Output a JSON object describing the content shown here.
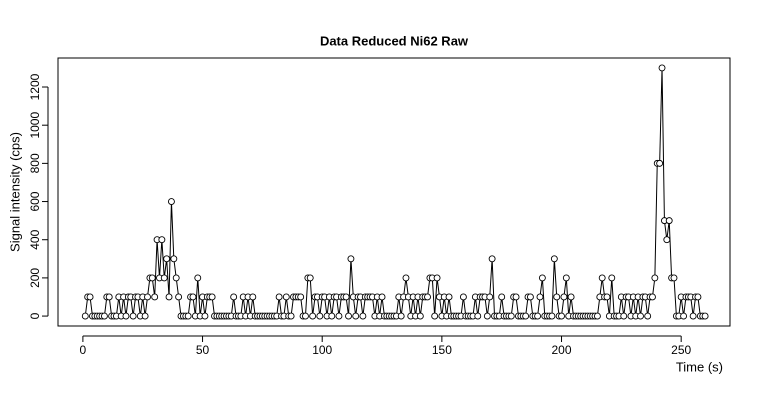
{
  "chart_data": {
    "type": "line",
    "title": "Data Reduced Ni62 Raw",
    "x_label": "Time (s)",
    "y_label": "Signal intensity (cps)",
    "x": [
      1,
      2,
      3,
      4,
      5,
      6,
      7,
      8,
      9,
      10,
      11,
      12,
      13,
      14,
      15,
      16,
      17,
      18,
      19,
      20,
      21,
      22,
      23,
      24,
      25,
      26,
      27,
      28,
      29,
      30,
      31,
      32,
      33,
      34,
      35,
      36,
      37,
      38,
      39,
      40,
      41,
      42,
      43,
      44,
      45,
      46,
      47,
      48,
      49,
      50,
      51,
      52,
      53,
      54,
      55,
      56,
      57,
      58,
      59,
      60,
      61,
      62,
      63,
      64,
      65,
      66,
      67,
      68,
      69,
      70,
      71,
      72,
      73,
      74,
      75,
      76,
      77,
      78,
      79,
      80,
      81,
      82,
      83,
      84,
      85,
      86,
      87,
      88,
      89,
      90,
      91,
      92,
      93,
      94,
      95,
      96,
      97,
      98,
      99,
      100,
      101,
      102,
      103,
      104,
      105,
      106,
      107,
      108,
      109,
      110,
      111,
      112,
      113,
      114,
      115,
      116,
      117,
      118,
      119,
      120,
      121,
      122,
      123,
      124,
      125,
      126,
      127,
      128,
      129,
      130,
      131,
      132,
      133,
      134,
      135,
      136,
      137,
      138,
      139,
      140,
      141,
      142,
      143,
      144,
      145,
      146,
      147,
      148,
      149,
      150,
      151,
      152,
      153,
      154,
      155,
      156,
      157,
      158,
      159,
      160,
      161,
      162,
      163,
      164,
      165,
      166,
      167,
      168,
      169,
      170,
      171,
      172,
      173,
      174,
      175,
      176,
      177,
      178,
      179,
      180,
      181,
      182,
      183,
      184,
      185,
      186,
      187,
      188,
      189,
      190,
      191,
      192,
      193,
      194,
      195,
      196,
      197,
      198,
      199,
      200,
      201,
      202,
      203,
      204,
      205,
      206,
      207,
      208,
      209,
      210,
      211,
      212,
      213,
      214,
      215,
      216,
      217,
      218,
      219,
      220,
      221,
      222,
      223,
      224,
      225,
      226,
      227,
      228,
      229,
      230,
      231,
      232,
      233,
      234,
      235,
      236,
      237,
      238,
      239,
      240,
      241,
      242,
      243,
      244,
      245,
      246,
      247,
      248,
      249,
      250,
      251,
      252,
      253,
      254,
      255,
      256,
      257,
      258,
      259,
      260
    ],
    "values": [
      0,
      100,
      100,
      0,
      0,
      0,
      0,
      0,
      0,
      100,
      100,
      0,
      0,
      0,
      100,
      0,
      100,
      0,
      100,
      100,
      0,
      100,
      100,
      0,
      100,
      0,
      100,
      200,
      200,
      100,
      400,
      200,
      400,
      200,
      300,
      100,
      600,
      300,
      200,
      100,
      0,
      0,
      0,
      0,
      100,
      100,
      0,
      200,
      0,
      100,
      0,
      100,
      100,
      100,
      0,
      0,
      0,
      0,
      0,
      0,
      0,
      0,
      100,
      0,
      0,
      0,
      100,
      0,
      100,
      0,
      100,
      0,
      0,
      0,
      0,
      0,
      0,
      0,
      0,
      0,
      0,
      100,
      0,
      0,
      100,
      0,
      0,
      100,
      100,
      100,
      100,
      0,
      0,
      200,
      200,
      0,
      100,
      100,
      0,
      100,
      100,
      0,
      100,
      0,
      100,
      100,
      0,
      100,
      100,
      100,
      0,
      300,
      100,
      0,
      100,
      100,
      0,
      100,
      100,
      100,
      100,
      0,
      100,
      0,
      100,
      0,
      0,
      0,
      0,
      0,
      0,
      100,
      0,
      100,
      200,
      100,
      0,
      100,
      0,
      100,
      0,
      100,
      100,
      100,
      200,
      200,
      0,
      200,
      100,
      0,
      100,
      0,
      100,
      0,
      0,
      0,
      0,
      0,
      100,
      0,
      0,
      0,
      0,
      100,
      0,
      100,
      100,
      100,
      0,
      100,
      300,
      0,
      0,
      0,
      100,
      0,
      0,
      0,
      0,
      100,
      100,
      0,
      0,
      0,
      0,
      100,
      100,
      0,
      0,
      0,
      100,
      200,
      0,
      0,
      0,
      0,
      300,
      100,
      0,
      0,
      100,
      200,
      0,
      100,
      0,
      0,
      0,
      0,
      0,
      0,
      0,
      0,
      0,
      0,
      0,
      100,
      200,
      100,
      100,
      0,
      200,
      0,
      0,
      0,
      100,
      0,
      100,
      100,
      0,
      100,
      0,
      100,
      0,
      100,
      100,
      0,
      100,
      100,
      200,
      800,
      800,
      1300,
      500,
      400,
      500,
      200,
      200,
      0,
      0,
      100,
      0,
      100,
      100,
      100,
      0,
      100,
      100,
      0,
      0,
      0
    ],
    "color": "#000000",
    "xlim": [
      -10.4,
      270.4
    ],
    "ylim": [
      -52,
      1352
    ],
    "xticks": [
      0,
      50,
      100,
      150,
      200,
      250
    ],
    "yticks": [
      0,
      200,
      400,
      600,
      800,
      1000,
      1200
    ]
  }
}
